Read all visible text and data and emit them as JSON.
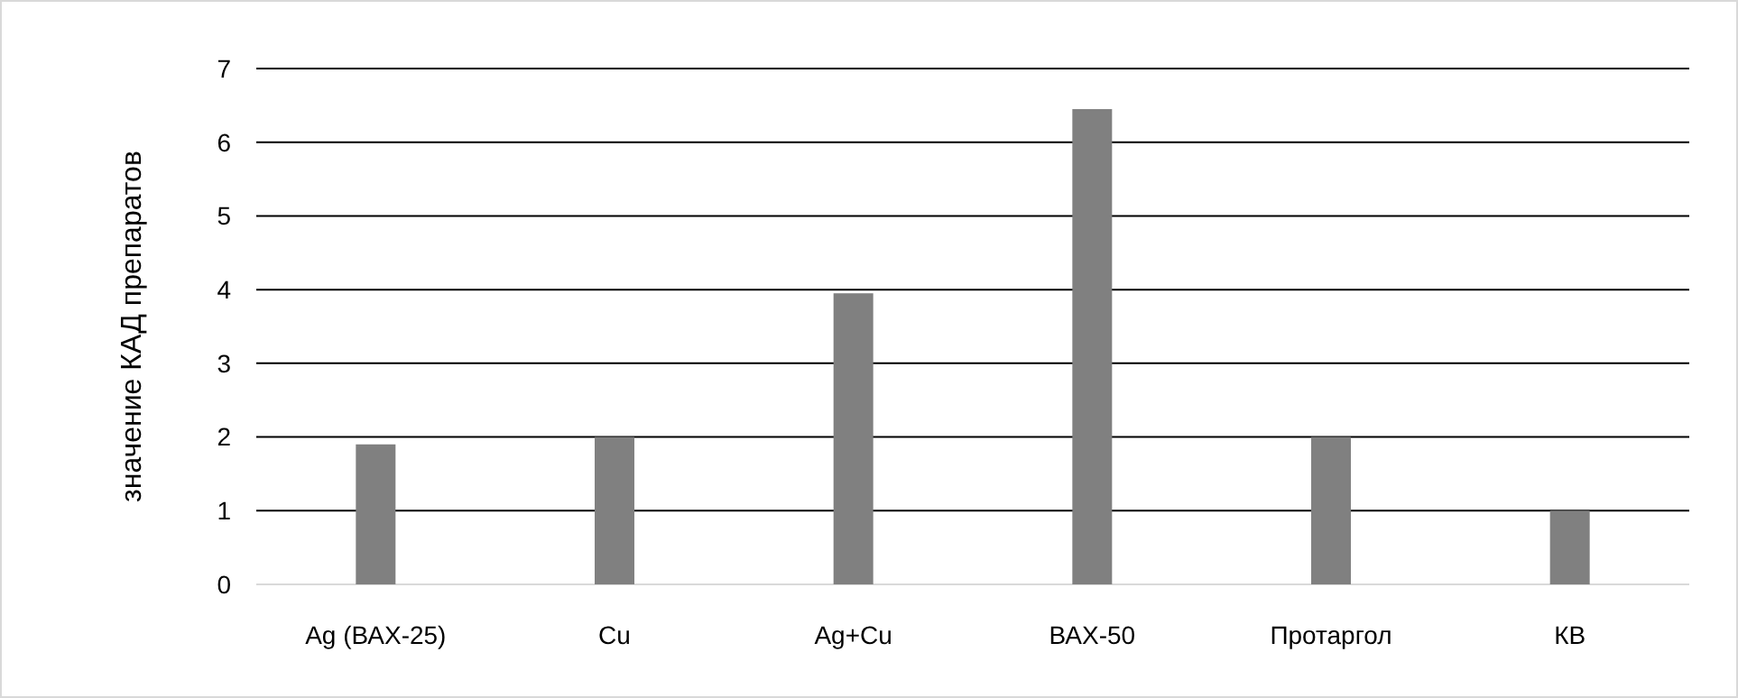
{
  "chart_data": {
    "type": "bar",
    "ylabel": "значение КАД препаратов",
    "categories": [
      "Ag (ВАХ-25)",
      "Cu",
      "Ag+Cu",
      "ВАХ-50",
      "Протаргол",
      "КВ"
    ],
    "values": [
      1.9,
      2,
      3.95,
      6.45,
      2,
      1
    ],
    "color": "#808080",
    "ylim": [
      0,
      7
    ],
    "yticks": [
      0,
      1,
      2,
      3,
      4,
      5,
      6,
      7
    ],
    "grid": "y"
  }
}
